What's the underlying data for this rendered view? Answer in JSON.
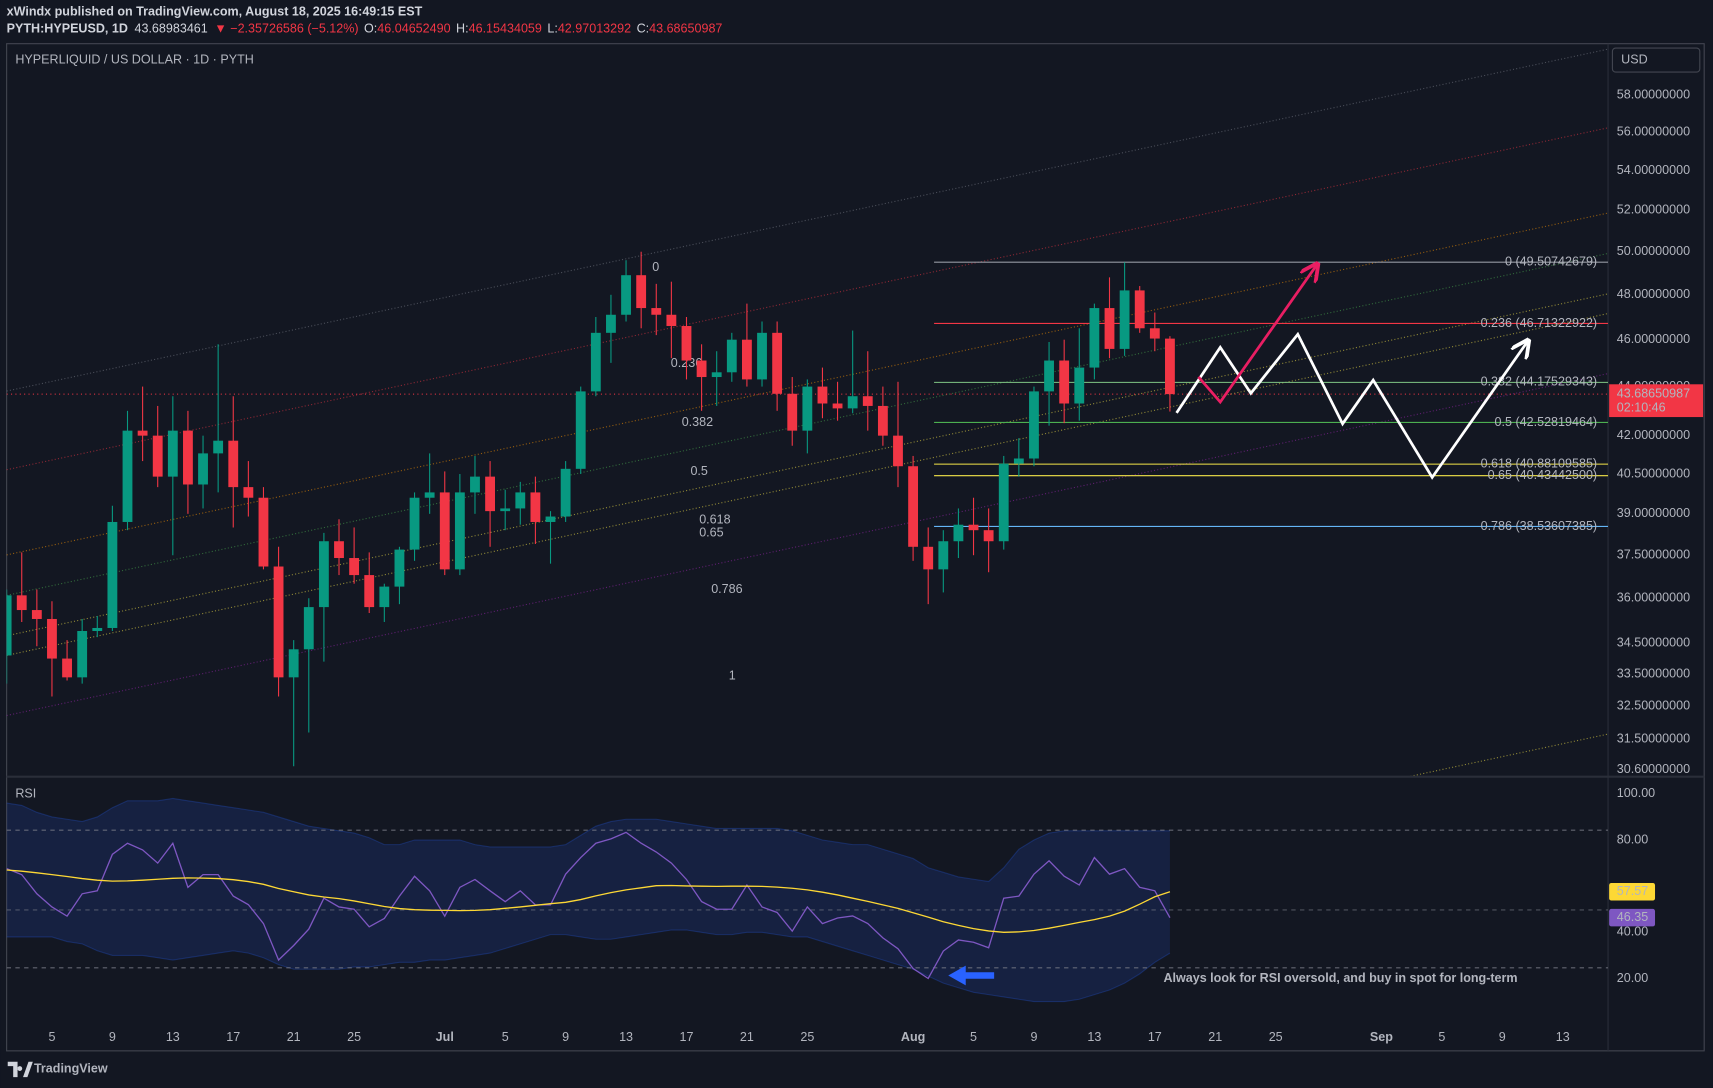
{
  "header": {
    "published": "xWindx published on TradingView.com, August 18, 2025 16:49:15 EST",
    "symbol": "PYTH:HYPEUSD, 1D",
    "last": "43.68983461",
    "change": "▼ −2.35726586 (−5.12%)",
    "ohlc": [
      {
        "label": "O:",
        "value": "46.04652490"
      },
      {
        "label": "H:",
        "value": "46.15434059"
      },
      {
        "label": "L:",
        "value": "42.97013292"
      },
      {
        "label": "C:",
        "value": "43.68650987"
      }
    ]
  },
  "chart_data": [
    {
      "type": "candlestick",
      "title": "HYPERLIQUID / US DOLLAR · 1D · PYTH",
      "currency": "USD",
      "countdown": "02:10:46",
      "x": [
        "2025-06-02",
        "2025-06-03",
        "2025-06-04",
        "2025-06-05",
        "2025-06-06",
        "2025-06-07",
        "2025-06-08",
        "2025-06-09",
        "2025-06-10",
        "2025-06-11",
        "2025-06-12",
        "2025-06-13",
        "2025-06-14",
        "2025-06-15",
        "2025-06-16",
        "2025-06-17",
        "2025-06-18",
        "2025-06-19",
        "2025-06-20",
        "2025-06-21",
        "2025-06-22",
        "2025-06-23",
        "2025-06-24",
        "2025-06-25",
        "2025-06-26",
        "2025-06-27",
        "2025-06-28",
        "2025-06-29",
        "2025-06-30",
        "2025-07-01",
        "2025-07-02",
        "2025-07-03",
        "2025-07-04",
        "2025-07-05",
        "2025-07-06",
        "2025-07-07",
        "2025-07-08",
        "2025-07-09",
        "2025-07-10",
        "2025-07-11",
        "2025-07-12",
        "2025-07-13",
        "2025-07-14",
        "2025-07-15",
        "2025-07-16",
        "2025-07-17",
        "2025-07-18",
        "2025-07-19",
        "2025-07-20",
        "2025-07-21",
        "2025-07-22",
        "2025-07-23",
        "2025-07-24",
        "2025-07-25",
        "2025-07-26",
        "2025-07-27",
        "2025-07-28",
        "2025-07-29",
        "2025-07-30",
        "2025-07-31",
        "2025-08-01",
        "2025-08-02",
        "2025-08-03",
        "2025-08-04",
        "2025-08-05",
        "2025-08-06",
        "2025-08-07",
        "2025-08-08",
        "2025-08-09",
        "2025-08-10",
        "2025-08-11",
        "2025-08-12",
        "2025-08-13",
        "2025-08-14",
        "2025-08-15",
        "2025-08-16",
        "2025-08-17",
        "2025-08-18"
      ],
      "open": [
        34.1,
        36.1,
        35.6,
        35.3,
        34.0,
        33.4,
        34.9,
        35.0,
        38.7,
        42.2,
        42.0,
        40.4,
        42.2,
        40.1,
        41.3,
        41.8,
        40.0,
        39.6,
        37.1,
        33.4,
        34.3,
        35.7,
        38.0,
        37.4,
        36.8,
        35.7,
        36.4,
        37.7,
        39.6,
        39.8,
        37.0,
        39.8,
        40.4,
        39.1,
        39.2,
        39.8,
        38.7,
        38.9,
        40.7,
        43.8,
        46.3,
        47.1,
        48.9,
        47.4,
        47.1,
        46.6,
        45.1,
        44.4,
        44.6,
        46.0,
        44.3,
        46.3,
        43.7,
        42.2,
        44.0,
        43.3,
        43.1,
        43.6,
        43.2,
        42.0,
        40.8,
        37.8,
        37.0,
        38.0,
        38.6,
        38.4,
        38.0,
        40.9,
        41.1,
        43.8,
        45.1,
        43.3,
        44.8,
        47.4,
        45.6,
        48.2,
        46.5,
        46.0465249
      ],
      "high": [
        36.3,
        37.6,
        36.3,
        35.9,
        34.6,
        35.3,
        35.4,
        39.3,
        43.0,
        44.0,
        43.2,
        43.6,
        43.0,
        42.0,
        45.8,
        43.6,
        41.0,
        40.0,
        37.8,
        34.6,
        36.0,
        38.3,
        38.8,
        38.5,
        37.6,
        36.5,
        37.8,
        39.8,
        41.3,
        40.6,
        40.5,
        41.2,
        41.0,
        39.9,
        40.2,
        40.4,
        39.1,
        41.0,
        44.0,
        47.0,
        48.0,
        49.6,
        50.0,
        48.5,
        48.6,
        47.0,
        45.8,
        45.5,
        46.3,
        47.6,
        46.8,
        46.8,
        44.4,
        44.3,
        44.8,
        44.2,
        46.4,
        45.5,
        44.0,
        44.2,
        41.2,
        38.5,
        38.4,
        39.2,
        39.6,
        39.2,
        41.2,
        41.9,
        44.0,
        45.9,
        46.0,
        46.5,
        47.6,
        48.8,
        49.5,
        48.4,
        47.2,
        46.15434059
      ],
      "low": [
        33.2,
        35.2,
        34.4,
        32.8,
        33.3,
        33.2,
        34.7,
        34.9,
        38.4,
        41.0,
        40.0,
        37.5,
        39.0,
        39.2,
        39.8,
        38.5,
        38.9,
        37.0,
        32.8,
        30.7,
        31.7,
        33.9,
        36.8,
        36.5,
        35.5,
        35.2,
        35.8,
        37.3,
        39.0,
        36.8,
        36.8,
        39.0,
        37.8,
        38.4,
        38.6,
        37.9,
        37.2,
        38.7,
        40.5,
        43.6,
        45.0,
        46.8,
        46.5,
        46.2,
        45.2,
        44.3,
        43.0,
        43.2,
        44.2,
        44.0,
        44.0,
        43.0,
        41.6,
        41.3,
        42.7,
        42.6,
        42.9,
        42.2,
        41.6,
        40.0,
        37.3,
        35.8,
        36.2,
        37.4,
        37.5,
        36.9,
        37.7,
        40.4,
        40.8,
        42.4,
        42.5,
        42.6,
        44.3,
        45.2,
        45.3,
        46.3,
        45.5,
        42.97013292
      ],
      "close": [
        36.1,
        35.6,
        35.3,
        34.0,
        33.4,
        34.9,
        35.0,
        38.7,
        42.2,
        42.0,
        40.4,
        42.2,
        40.1,
        41.3,
        41.8,
        40.0,
        39.6,
        37.1,
        33.4,
        34.3,
        35.7,
        38.0,
        37.4,
        36.8,
        35.7,
        36.4,
        37.7,
        39.6,
        39.8,
        37.0,
        39.8,
        40.4,
        39.1,
        39.2,
        39.8,
        38.7,
        38.9,
        40.7,
        43.8,
        46.3,
        47.1,
        48.9,
        47.4,
        47.1,
        46.6,
        45.1,
        44.4,
        44.6,
        46.0,
        44.3,
        46.3,
        43.7,
        42.2,
        44.0,
        43.3,
        43.1,
        43.6,
        43.2,
        42.0,
        40.8,
        37.8,
        37.0,
        38.0,
        38.6,
        38.4,
        38.0,
        40.9,
        41.1,
        43.8,
        45.1,
        43.3,
        44.8,
        47.4,
        45.6,
        48.2,
        46.5,
        46.05,
        43.68650987
      ],
      "up_color": "#089981",
      "down_color": "#f23645",
      "xlim": [
        "2025-06-02",
        "2025-09-16"
      ],
      "ylim": [
        30.43,
        60.9
      ],
      "log_scale": true,
      "yticks": [
        {
          "value": 58,
          "label": "58.00000000"
        },
        {
          "value": 56,
          "label": "56.00000000"
        },
        {
          "value": 54,
          "label": "54.00000000"
        },
        {
          "value": 52,
          "label": "52.00000000"
        },
        {
          "value": 50,
          "label": "50.00000000"
        },
        {
          "value": 48,
          "label": "48.00000000"
        },
        {
          "value": 46,
          "label": "46.00000000"
        },
        {
          "value": 44,
          "label": "44.00000000"
        },
        {
          "value": 42,
          "label": "42.00000000"
        },
        {
          "value": 40.5,
          "label": "40.50000000"
        },
        {
          "value": 39,
          "label": "39.00000000"
        },
        {
          "value": 37.5,
          "label": "37.50000000"
        },
        {
          "value": 36,
          "label": "36.00000000"
        },
        {
          "value": 34.5,
          "label": "34.50000000"
        },
        {
          "value": 33.5,
          "label": "33.50000000"
        },
        {
          "value": 32.5,
          "label": "32.50000000"
        },
        {
          "value": 31.5,
          "label": "31.50000000"
        },
        {
          "value": 30.6,
          "label": "30.60000000"
        }
      ],
      "grid": false,
      "fib_levels": [
        {
          "value": 49.50742679,
          "label": "0 (49.50742679)",
          "color": "#9598a1"
        },
        {
          "value": 46.71322922,
          "label": "0.236 (46.71322922)",
          "color": "#f23645"
        },
        {
          "value": 44.17529343,
          "label": "0.382 (44.17529343)",
          "color": "#81c784"
        },
        {
          "value": 42.52819464,
          "label": "0.5 (42.52819464)",
          "color": "#4caf50"
        },
        {
          "value": 40.88109585,
          "label": "0.618 (40.88109585)",
          "color": "#f5e649"
        },
        {
          "value": 40.434425,
          "label": "0.65 (40.43442500)",
          "color": "#f5e649"
        },
        {
          "value": 38.53607385,
          "label": "0.786 (38.53607385)",
          "color": "#64b5f6"
        }
      ],
      "fib_left_labels": [
        {
          "label": "0",
          "color": "#787b86"
        },
        {
          "label": "0.236",
          "color": "#f23645"
        },
        {
          "label": "0.382",
          "color": "#ff9800"
        },
        {
          "label": "0.5",
          "color": "#4caf50"
        },
        {
          "label": "0.618",
          "color": "#f5e649"
        },
        {
          "label": "0.65",
          "color": "#f5e649"
        },
        {
          "label": "0.786",
          "color": "#9c27b0"
        },
        {
          "label": "1",
          "color": "#787b86"
        }
      ]
    },
    {
      "type": "line",
      "title": "RSI",
      "x": [
        "2025-06-02",
        "2025-06-03",
        "2025-06-04",
        "2025-06-05",
        "2025-06-06",
        "2025-06-07",
        "2025-06-08",
        "2025-06-09",
        "2025-06-10",
        "2025-06-11",
        "2025-06-12",
        "2025-06-13",
        "2025-06-14",
        "2025-06-15",
        "2025-06-16",
        "2025-06-17",
        "2025-06-18",
        "2025-06-19",
        "2025-06-20",
        "2025-06-21",
        "2025-06-22",
        "2025-06-23",
        "2025-06-24",
        "2025-06-25",
        "2025-06-26",
        "2025-06-27",
        "2025-06-28",
        "2025-06-29",
        "2025-06-30",
        "2025-07-01",
        "2025-07-02",
        "2025-07-03",
        "2025-07-04",
        "2025-07-05",
        "2025-07-06",
        "2025-07-07",
        "2025-07-08",
        "2025-07-09",
        "2025-07-10",
        "2025-07-11",
        "2025-07-12",
        "2025-07-13",
        "2025-07-14",
        "2025-07-15",
        "2025-07-16",
        "2025-07-17",
        "2025-07-18",
        "2025-07-19",
        "2025-07-20",
        "2025-07-21",
        "2025-07-22",
        "2025-07-23",
        "2025-07-24",
        "2025-07-25",
        "2025-07-26",
        "2025-07-27",
        "2025-07-28",
        "2025-07-29",
        "2025-07-30",
        "2025-07-31",
        "2025-08-01",
        "2025-08-02",
        "2025-08-03",
        "2025-08-04",
        "2025-08-05",
        "2025-08-06",
        "2025-08-07",
        "2025-08-08",
        "2025-08-09",
        "2025-08-10",
        "2025-08-11",
        "2025-08-12",
        "2025-08-13",
        "2025-08-14",
        "2025-08-15",
        "2025-08-16",
        "2025-08-17",
        "2025-08-18"
      ],
      "series": [
        {
          "color": "#7e57c2",
          "values": [
            67.6,
            65,
            56.7,
            51,
            47,
            56.7,
            58,
            73.8,
            78.6,
            75.7,
            70,
            78.6,
            59.5,
            65,
            65,
            55.7,
            52,
            43.8,
            28,
            34.3,
            41.4,
            54.8,
            51,
            50,
            42.4,
            46,
            55.7,
            64.3,
            58,
            47,
            59.5,
            62.9,
            58,
            53.3,
            58,
            51.9,
            51.9,
            65.2,
            72.4,
            78.6,
            80.5,
            83.3,
            78.6,
            74.8,
            70,
            62.9,
            53.3,
            50,
            50,
            60.5,
            51,
            48.6,
            40.5,
            51,
            43.8,
            46.2,
            47.1,
            43.8,
            37.6,
            32.9,
            24.3,
            20,
            31.9,
            36.7,
            35.7,
            33.3,
            54.8,
            55.7,
            65.2,
            71,
            64.3,
            60.5,
            72.4,
            65.2,
            67.6,
            59.5,
            58,
            46.35
          ]
        },
        {
          "color": "#fdd835",
          "values": [
            67,
            66.5,
            65.8,
            65,
            64.2,
            63.3,
            62.6,
            62.2,
            62.3,
            62.6,
            63,
            63.4,
            63.6,
            63.5,
            63.3,
            62.8,
            62,
            60.8,
            59,
            57.6,
            56.2,
            55.3,
            54.6,
            53.6,
            52.4,
            51.2,
            50.3,
            49.8,
            49.6,
            49.5,
            49.4,
            49.5,
            49.8,
            50.4,
            51,
            51.7,
            52.4,
            53,
            54.2,
            55.8,
            57.2,
            58.4,
            59.3,
            60.2,
            60.3,
            60.1,
            60,
            59.9,
            60,
            60,
            59.9,
            59.6,
            59.1,
            58.4,
            57.4,
            56.2,
            54.8,
            53.4,
            51.9,
            50.4,
            48.5,
            46.6,
            44.6,
            43,
            41.6,
            40.6,
            40,
            40.2,
            40.8,
            41.8,
            43,
            44.3,
            45.5,
            47,
            49.2,
            52.2,
            55.4,
            57.57
          ]
        }
      ],
      "band": {
        "color": "#2962ff",
        "upper": [
          96,
          95,
          92,
          90,
          89,
          88,
          90,
          94,
          97,
          97,
          97,
          98,
          97,
          96,
          95,
          94,
          93,
          92,
          90,
          88,
          86,
          85,
          84,
          83,
          81,
          78,
          78,
          80,
          80,
          80,
          80,
          78,
          77,
          77,
          77,
          77,
          77,
          78,
          82,
          86,
          88,
          89,
          89,
          89,
          88,
          87,
          86,
          85,
          85,
          85,
          85,
          85,
          84,
          82,
          80,
          79,
          78,
          78,
          76,
          74,
          72,
          68,
          66,
          64,
          63,
          62,
          68,
          76,
          80,
          83,
          84,
          84,
          84,
          84,
          84,
          84,
          84,
          84
        ],
        "lower": [
          38,
          38,
          38,
          38,
          36,
          35,
          32,
          30,
          30,
          30,
          29,
          28,
          29,
          30,
          31,
          32,
          31,
          29,
          26,
          24,
          24,
          24,
          24,
          25,
          25,
          26,
          27,
          27,
          28,
          28,
          29,
          30,
          31,
          33,
          35,
          37,
          39,
          39,
          38,
          37,
          37,
          38,
          39,
          40,
          41,
          41,
          40,
          39,
          39,
          40,
          40,
          39,
          38,
          38,
          36,
          34,
          32,
          30,
          28,
          26,
          24,
          21,
          18,
          16,
          14,
          13,
          12,
          11,
          10,
          10,
          10,
          11,
          13,
          15,
          18,
          22,
          27,
          31
        ]
      },
      "xlim": [
        "2025-06-02",
        "2025-09-16"
      ],
      "xticks": [
        {
          "value": "2025-06-05",
          "label": "5"
        },
        {
          "value": "2025-06-09",
          "label": "9"
        },
        {
          "value": "2025-06-13",
          "label": "13"
        },
        {
          "value": "2025-06-17",
          "label": "17"
        },
        {
          "value": "2025-06-21",
          "label": "21"
        },
        {
          "value": "2025-06-25",
          "label": "25"
        },
        {
          "value": "2025-07-01",
          "label": "Jul"
        },
        {
          "value": "2025-07-05",
          "label": "5"
        },
        {
          "value": "2025-07-09",
          "label": "9"
        },
        {
          "value": "2025-07-13",
          "label": "13"
        },
        {
          "value": "2025-07-17",
          "label": "17"
        },
        {
          "value": "2025-07-21",
          "label": "21"
        },
        {
          "value": "2025-07-25",
          "label": "25"
        },
        {
          "value": "2025-08-01",
          "label": "Aug"
        },
        {
          "value": "2025-08-05",
          "label": "5"
        },
        {
          "value": "2025-08-09",
          "label": "9"
        },
        {
          "value": "2025-08-13",
          "label": "13"
        },
        {
          "value": "2025-08-17",
          "label": "17"
        },
        {
          "value": "2025-08-21",
          "label": "21"
        },
        {
          "value": "2025-08-25",
          "label": "25"
        },
        {
          "value": "2025-09-01",
          "label": "Sep"
        },
        {
          "value": "2025-09-05",
          "label": "5"
        },
        {
          "value": "2025-09-09",
          "label": "9"
        },
        {
          "value": "2025-09-13",
          "label": "13"
        }
      ],
      "ylim": [
        0,
        106.5
      ],
      "yticks": [
        {
          "value": 100,
          "label": "100.00"
        },
        {
          "value": 80,
          "label": "80.00"
        },
        {
          "value": 40,
          "label": "40.00"
        },
        {
          "value": 20,
          "label": "20.00"
        }
      ],
      "annotation": {
        "text": "Always look for RSI oversold, and buy in spot for long-term",
        "color": "#ff9800"
      }
    }
  ],
  "footer": {
    "brand": "TradingView"
  }
}
